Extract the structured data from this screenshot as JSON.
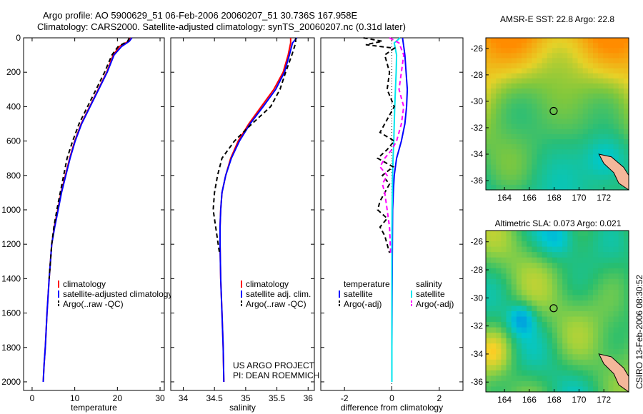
{
  "titles": {
    "line1": "Argo profile: AO 5900629_51 06-Feb-2006 20060207_51 30.736S 167.958E",
    "line2": "Climatology: CARS2000. Satellite-adjusted climatology: synTS_20060207.nc (0.31d later)"
  },
  "credit": "CSIRO 13-Feb-2006 08:30:52",
  "colors": {
    "climatology": "#ff0000",
    "satellite": "#0000ff",
    "argo": "#000000",
    "sat_salinity": "#00e5ee",
    "argo_adj": "#ff00ff"
  },
  "chart_data": [
    {
      "type": "line",
      "panel": "temperature",
      "xlabel": "temperature",
      "ylabel": "",
      "xlim": [
        -2,
        31
      ],
      "ylim": [
        2050,
        0
      ],
      "xticks": [
        0,
        10,
        20,
        30
      ],
      "xtick_labels": [
        "0",
        "10",
        "20",
        "30"
      ],
      "yticks": [
        0,
        200,
        400,
        600,
        800,
        1000,
        1200,
        1400,
        1600,
        1800,
        2000
      ],
      "ytick_labels": [
        "0",
        "200",
        "400",
        "600",
        "800",
        "1000",
        "1200",
        "1400",
        "1600",
        "1800",
        "2000"
      ],
      "legend": {
        "placement": "bottom-right",
        "entries": [
          "climatology",
          "satellite-adjusted climatology",
          "Argo(..raw -QC)"
        ]
      },
      "series": [
        {
          "name": "climatology",
          "color": "#ff0000",
          "style": "solid",
          "x": [
            23.0,
            22.6,
            20.5,
            19.0,
            17.5,
            15.5,
            13.5,
            11.5,
            10.0,
            8.8,
            7.8,
            6.8,
            6.0,
            5.2,
            4.6,
            4.0,
            3.5,
            3.1,
            2.8,
            2.6
          ],
          "y": [
            0,
            20,
            50,
            100,
            200,
            300,
            400,
            500,
            600,
            700,
            800,
            900,
            1000,
            1100,
            1200,
            1400,
            1600,
            1800,
            1900,
            2000
          ]
        },
        {
          "name": "satellite-adjusted climatology",
          "color": "#0000ff",
          "style": "solid",
          "x": [
            23.4,
            22.8,
            21.0,
            19.2,
            17.6,
            15.6,
            13.6,
            11.6,
            10.1,
            8.9,
            7.9,
            6.9,
            6.1,
            5.3,
            4.6,
            4.0,
            3.5,
            3.1,
            2.8,
            2.6
          ],
          "y": [
            0,
            20,
            50,
            100,
            200,
            300,
            400,
            500,
            600,
            700,
            800,
            900,
            1000,
            1100,
            1200,
            1400,
            1600,
            1800,
            1900,
            2000
          ]
        },
        {
          "name": "Argo(..raw -QC)",
          "color": "#000000",
          "style": "dashed",
          "x": [
            22.8,
            22.4,
            20.2,
            18.7,
            17.0,
            15.0,
            13.0,
            11.0,
            9.5,
            8.2,
            7.4,
            6.6,
            5.8,
            5.1,
            4.6,
            4.0
          ],
          "y": [
            0,
            20,
            50,
            100,
            200,
            300,
            400,
            500,
            600,
            700,
            800,
            900,
            1000,
            1100,
            1200,
            1400
          ]
        }
      ]
    },
    {
      "type": "line",
      "panel": "salinity",
      "xlabel": "salinity",
      "ylabel": "",
      "xlim": [
        33.8,
        36.1
      ],
      "ylim": [
        2050,
        0
      ],
      "xticks": [
        34,
        34.5,
        35,
        35.5,
        36
      ],
      "xtick_labels": [
        "34",
        "34.5",
        "35",
        "35.5",
        "36"
      ],
      "legend": {
        "placement": "bottom-right",
        "entries": [
          "climatology",
          "satellite adj. clim.",
          "Argo(..raw -QC)"
        ]
      },
      "annotations": [
        "US ARGO PROJECT",
        "PI: DEAN ROEMMICH"
      ],
      "series": [
        {
          "name": "climatology",
          "color": "#ff0000",
          "style": "solid",
          "x": [
            35.72,
            35.72,
            35.68,
            35.6,
            35.45,
            35.25,
            35.05,
            34.88,
            34.76,
            34.68,
            34.62,
            34.6,
            34.59,
            34.59,
            34.6,
            34.62,
            34.64,
            34.65
          ],
          "y": [
            0,
            30,
            100,
            200,
            300,
            400,
            500,
            600,
            700,
            800,
            900,
            1000,
            1100,
            1200,
            1400,
            1600,
            1800,
            2000
          ]
        },
        {
          "name": "satellite adj. clim.",
          "color": "#0000ff",
          "style": "solid",
          "x": [
            35.82,
            35.75,
            35.7,
            35.62,
            35.48,
            35.28,
            35.07,
            34.9,
            34.77,
            34.68,
            34.62,
            34.6,
            34.59,
            34.59,
            34.6,
            34.62,
            34.64,
            34.65
          ],
          "y": [
            0,
            30,
            100,
            200,
            300,
            400,
            500,
            600,
            700,
            800,
            900,
            1000,
            1100,
            1200,
            1400,
            1600,
            1800,
            2000
          ]
        },
        {
          "name": "Argo(..raw -QC)",
          "color": "#000000",
          "style": "dashed",
          "x": [
            35.8,
            35.8,
            35.74,
            35.64,
            35.55,
            35.4,
            35.1,
            34.82,
            34.62,
            34.55,
            34.5,
            34.48,
            34.52,
            34.56,
            34.58
          ],
          "y": [
            0,
            30,
            100,
            200,
            300,
            400,
            500,
            600,
            700,
            800,
            900,
            1000,
            1100,
            1200,
            1250
          ]
        }
      ]
    },
    {
      "type": "line",
      "panel": "difference",
      "xlabel": "difference from climatology",
      "ylabel": "",
      "xlim": [
        -3,
        3
      ],
      "ylim": [
        2050,
        0
      ],
      "xticks": [
        -2,
        0,
        2
      ],
      "xtick_labels": [
        "-2",
        "0",
        "2"
      ],
      "legend": {
        "placement": "bottom",
        "entries": [
          "temperature",
          "satellite",
          "Argo(-adj)",
          "salinity",
          "satellite",
          "Argo(-adj)"
        ]
      },
      "series": [
        {
          "name": "temperature satellite",
          "color": "#0000ff",
          "style": "solid",
          "x": [
            0.45,
            0.5,
            0.55,
            0.6,
            0.65,
            0.62,
            0.55,
            0.4,
            0.2,
            0.1,
            0.06,
            0.03,
            0.02,
            0.01,
            0.0,
            0.0
          ],
          "y": [
            0,
            50,
            100,
            200,
            300,
            400,
            500,
            600,
            700,
            800,
            900,
            1000,
            1200,
            1500,
            1800,
            2000
          ]
        },
        {
          "name": "salinity satellite",
          "color": "#00e5ee",
          "style": "solid",
          "x": [
            0.35,
            0.1,
            0.2,
            0.18,
            0.15,
            0.12,
            0.1,
            0.08,
            0.05,
            0.03,
            0.02,
            0.01,
            0.0,
            0.0,
            0.0
          ],
          "y": [
            0,
            30,
            100,
            200,
            300,
            400,
            500,
            600,
            700,
            800,
            900,
            1000,
            1200,
            1500,
            2000
          ]
        },
        {
          "name": "temperature Argo(-adj)",
          "color": "#000000",
          "style": "dashed",
          "x": [
            -1.2,
            -0.4,
            -1.1,
            0.1,
            -0.3,
            -0.1,
            -0.2,
            0.1,
            -0.3,
            -0.5,
            0.1,
            -0.2,
            -0.6,
            0.05,
            -0.4,
            -0.1,
            -0.3,
            -0.5,
            -0.6,
            -0.2,
            -0.5,
            -0.3,
            -0.1
          ],
          "y": [
            0,
            20,
            40,
            60,
            100,
            200,
            300,
            400,
            500,
            550,
            600,
            650,
            700,
            750,
            800,
            850,
            900,
            950,
            1000,
            1050,
            1100,
            1150,
            1250
          ]
        },
        {
          "name": "salinity Argo(-adj)",
          "color": "#ff00ff",
          "style": "dashed",
          "x": [
            -0.1,
            0.3,
            0.5,
            0.4,
            0.3,
            0.5,
            0.4,
            0.2,
            0.0,
            -0.3,
            -0.5,
            -0.2,
            -0.4,
            -0.3,
            -0.2,
            -0.1,
            -0.05
          ],
          "y": [
            0,
            30,
            100,
            200,
            300,
            400,
            500,
            600,
            650,
            700,
            750,
            800,
            850,
            900,
            1000,
            1100,
            1250
          ]
        }
      ]
    },
    {
      "type": "heatmap",
      "panel": "AMSR-E SST map",
      "title": "AMSR-E SST: 22.8 Argo: 22.8",
      "xlim": [
        162.5,
        174
      ],
      "ylim": [
        -36.7,
        -25.2
      ],
      "xticks": [
        164,
        166,
        168,
        170,
        172
      ],
      "xtick_labels": [
        "164",
        "166",
        "168",
        "170",
        "172"
      ],
      "yticks": [
        -26,
        -28,
        -30,
        -32,
        -34,
        -36
      ],
      "ytick_labels": [
        "-26",
        "-28",
        "-30",
        "-32",
        "-34",
        "-36"
      ],
      "marker": {
        "lon": 167.958,
        "lat": -30.736
      }
    },
    {
      "type": "heatmap",
      "panel": "Altimetric SLA map",
      "title": "Altimetric SLA: 0.073 Argo: 0.021",
      "xlim": [
        162.5,
        174
      ],
      "ylim": [
        -36.7,
        -25.2
      ],
      "xticks": [
        164,
        166,
        168,
        170,
        172
      ],
      "xtick_labels": [
        "164",
        "166",
        "168",
        "170",
        "172"
      ],
      "yticks": [
        -26,
        -28,
        -30,
        -32,
        -34,
        -36
      ],
      "ytick_labels": [
        "-26",
        "-28",
        "-30",
        "-32",
        "-34",
        "-36"
      ],
      "marker": {
        "lon": 167.958,
        "lat": -30.736
      }
    }
  ]
}
